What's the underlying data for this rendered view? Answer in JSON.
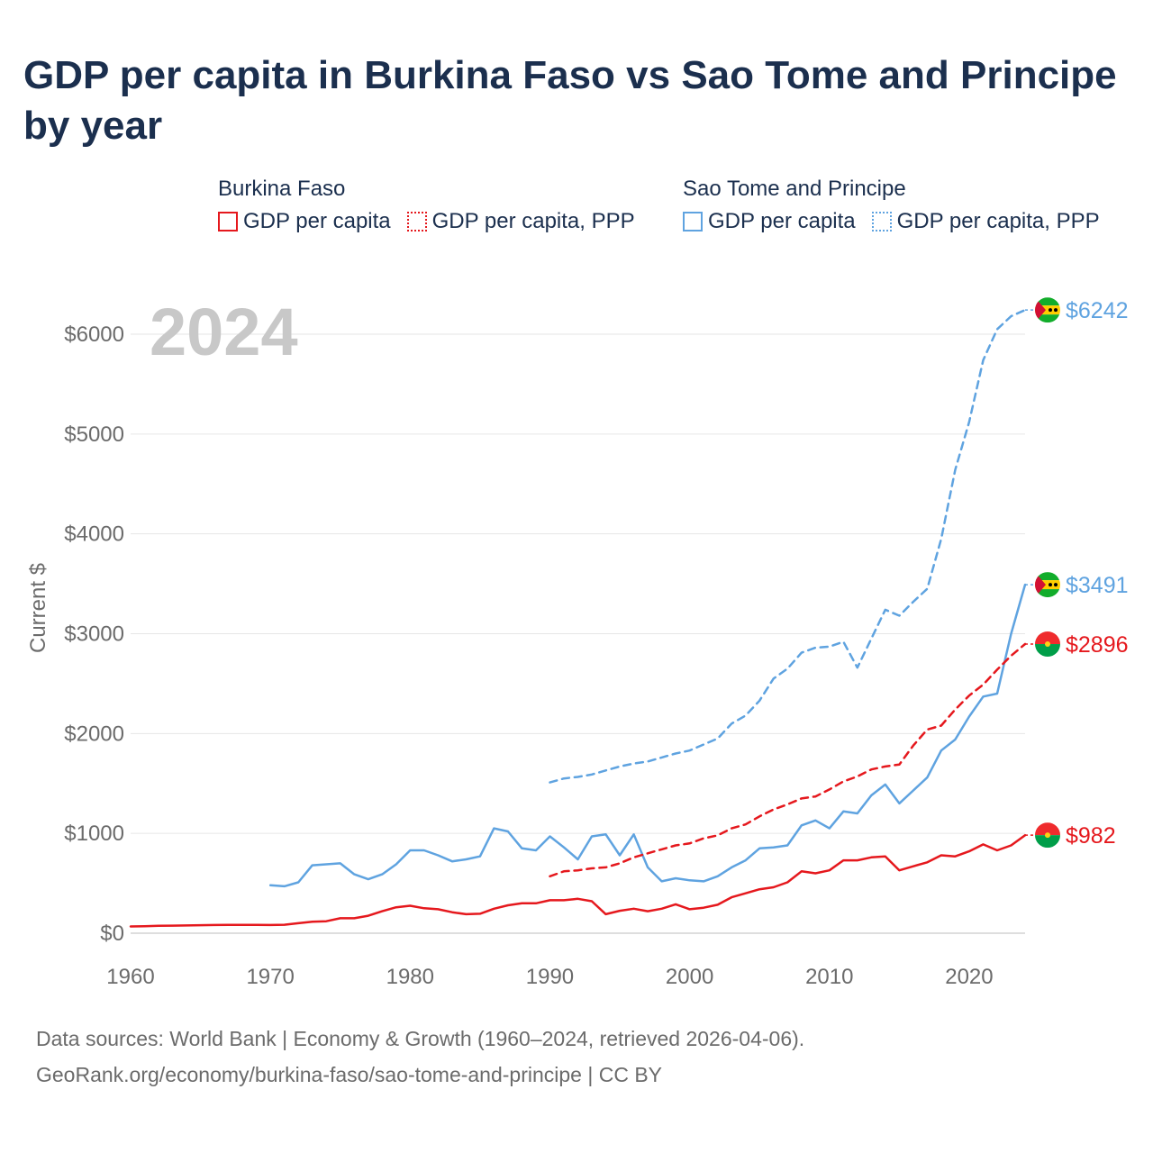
{
  "title": "GDP per capita in Burkina Faso vs Sao Tome and Principe by year",
  "legend": {
    "groups": [
      {
        "country": "Burkina Faso",
        "color": "#e5181d",
        "items": [
          {
            "label": "GDP per capita",
            "style": "solid"
          },
          {
            "label": "GDP per capita, PPP",
            "style": "dotted"
          }
        ]
      },
      {
        "country": "Sao Tome and Principe",
        "color": "#5fa3e0",
        "items": [
          {
            "label": "GDP per capita",
            "style": "solid"
          },
          {
            "label": "GDP per capita, PPP",
            "style": "dotted"
          }
        ]
      }
    ]
  },
  "footer": {
    "sources": "Data sources: World Bank | Economy & Growth (1960–2024, retrieved 2026-04-06).",
    "url": "GeoRank.org/economy/burkina-faso/sao-tome-and-principe | CC BY"
  },
  "chart_data": {
    "type": "line",
    "year_label": "2024",
    "ylabel": "Current $",
    "xlim": [
      1960,
      2024
    ],
    "ylim": [
      0,
      6400
    ],
    "y_ticks": [
      0,
      1000,
      2000,
      3000,
      4000,
      5000,
      6000
    ],
    "y_tick_labels": [
      "$0",
      "$1000",
      "$2000",
      "$3000",
      "$4000",
      "$5000",
      "$6000"
    ],
    "x_ticks": [
      1960,
      1970,
      1980,
      1990,
      2000,
      2010,
      2020
    ],
    "x_tick_labels": [
      "1960",
      "1970",
      "1980",
      "1990",
      "2000",
      "2010",
      "2020"
    ],
    "series": [
      {
        "name": "Sao Tome and Principe GDP per capita, PPP",
        "country": "Sao Tome and Principe",
        "color": "#5fa3e0",
        "dash": "dashed",
        "end_label": "$6242",
        "x": [
          1990,
          1991,
          1992,
          1993,
          1994,
          1995,
          1996,
          1997,
          1998,
          1999,
          2000,
          2001,
          2002,
          2003,
          2004,
          2005,
          2006,
          2007,
          2008,
          2009,
          2010,
          2011,
          2012,
          2013,
          2014,
          2015,
          2016,
          2017,
          2018,
          2019,
          2020,
          2021,
          2022,
          2023,
          2024
        ],
        "y": [
          1510,
          1550,
          1565,
          1590,
          1630,
          1670,
          1700,
          1720,
          1760,
          1800,
          1830,
          1890,
          1950,
          2100,
          2180,
          2330,
          2550,
          2650,
          2810,
          2860,
          2870,
          2920,
          2660,
          2950,
          3240,
          3180,
          3320,
          3450,
          3950,
          4640,
          5120,
          5740,
          6050,
          6180,
          6242
        ]
      },
      {
        "name": "Sao Tome and Principe GDP per capita",
        "country": "Sao Tome and Principe",
        "color": "#5fa3e0",
        "dash": "solid",
        "end_label": "$3491",
        "x": [
          1970,
          1971,
          1972,
          1973,
          1974,
          1975,
          1976,
          1977,
          1978,
          1979,
          1980,
          1981,
          1982,
          1983,
          1984,
          1985,
          1986,
          1987,
          1988,
          1989,
          1990,
          1991,
          1992,
          1993,
          1994,
          1995,
          1996,
          1997,
          1998,
          1999,
          2000,
          2001,
          2002,
          2003,
          2004,
          2005,
          2006,
          2007,
          2008,
          2009,
          2010,
          2011,
          2012,
          2013,
          2014,
          2015,
          2016,
          2017,
          2018,
          2019,
          2020,
          2021,
          2022,
          2023,
          2024
        ],
        "y": [
          480,
          470,
          510,
          680,
          690,
          700,
          590,
          540,
          590,
          690,
          830,
          830,
          780,
          720,
          740,
          770,
          1050,
          1020,
          850,
          830,
          970,
          860,
          740,
          970,
          990,
          780,
          990,
          660,
          520,
          550,
          530,
          520,
          570,
          660,
          730,
          850,
          860,
          880,
          1080,
          1130,
          1050,
          1220,
          1200,
          1380,
          1490,
          1300,
          1430,
          1560,
          1830,
          1940,
          2170,
          2370,
          2400,
          3000,
          3491
        ]
      },
      {
        "name": "Burkina Faso GDP per capita, PPP",
        "country": "Burkina Faso",
        "color": "#e5181d",
        "dash": "dashed",
        "end_label": "$2896",
        "x": [
          1990,
          1991,
          1992,
          1993,
          1994,
          1995,
          1996,
          1997,
          1998,
          1999,
          2000,
          2001,
          2002,
          2003,
          2004,
          2005,
          2006,
          2007,
          2008,
          2009,
          2010,
          2011,
          2012,
          2013,
          2014,
          2015,
          2016,
          2017,
          2018,
          2019,
          2020,
          2021,
          2022,
          2023,
          2024
        ],
        "y": [
          570,
          620,
          630,
          650,
          660,
          700,
          760,
          800,
          840,
          880,
          900,
          950,
          980,
          1050,
          1090,
          1170,
          1240,
          1290,
          1350,
          1370,
          1440,
          1520,
          1570,
          1640,
          1670,
          1690,
          1880,
          2040,
          2080,
          2240,
          2380,
          2490,
          2640,
          2780,
          2896
        ]
      },
      {
        "name": "Burkina Faso GDP per capita",
        "country": "Burkina Faso",
        "color": "#e5181d",
        "dash": "solid",
        "end_label": "$982",
        "x": [
          1960,
          1961,
          1962,
          1963,
          1964,
          1965,
          1966,
          1967,
          1968,
          1969,
          1970,
          1971,
          1972,
          1973,
          1974,
          1975,
          1976,
          1977,
          1978,
          1979,
          1980,
          1981,
          1982,
          1983,
          1984,
          1985,
          1986,
          1987,
          1988,
          1989,
          1990,
          1991,
          1992,
          1993,
          1994,
          1995,
          1996,
          1997,
          1998,
          1999,
          2000,
          2001,
          2002,
          2003,
          2004,
          2005,
          2006,
          2007,
          2008,
          2009,
          2010,
          2011,
          2012,
          2013,
          2014,
          2015,
          2016,
          2017,
          2018,
          2019,
          2020,
          2021,
          2022,
          2023,
          2024
        ],
        "y": [
          68,
          70,
          74,
          76,
          78,
          80,
          82,
          83,
          84,
          83,
          82,
          85,
          100,
          115,
          120,
          150,
          150,
          175,
          220,
          260,
          275,
          250,
          240,
          210,
          190,
          195,
          245,
          280,
          300,
          300,
          330,
          330,
          345,
          320,
          190,
          225,
          245,
          220,
          245,
          290,
          240,
          255,
          285,
          360,
          400,
          440,
          460,
          510,
          620,
          600,
          630,
          730,
          730,
          760,
          770,
          630,
          670,
          710,
          780,
          770,
          820,
          890,
          830,
          880,
          982
        ]
      }
    ]
  }
}
